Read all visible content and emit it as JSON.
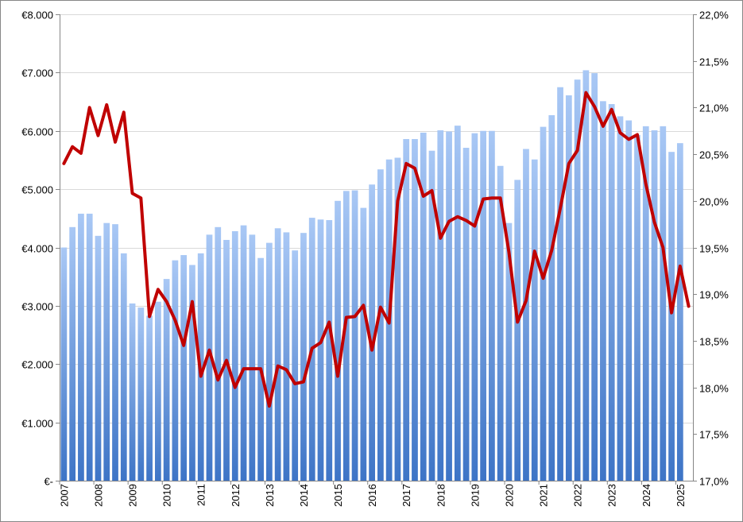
{
  "chart_data": {
    "type": "bar+line",
    "title": "",
    "xlabel": "",
    "ylabel": "",
    "ylabel_right": "",
    "y_left": {
      "range": [
        0,
        8000
      ],
      "ticks": [
        0,
        1000,
        2000,
        3000,
        4000,
        5000,
        6000,
        7000,
        8000
      ],
      "tick_labels": [
        "€-",
        "€1.000",
        "€2.000",
        "€3.000",
        "€4.000",
        "€5.000",
        "€6.000",
        "€7.000",
        "€8.000"
      ]
    },
    "y_right": {
      "range": [
        17.0,
        22.0
      ],
      "ticks": [
        17.0,
        17.5,
        18.0,
        18.5,
        19.0,
        19.5,
        20.0,
        20.5,
        21.0,
        21.5,
        22.0
      ],
      "tick_labels": [
        "17,0%",
        "17,5%",
        "18,0%",
        "18,5%",
        "19,0%",
        "19,5%",
        "20,0%",
        "20,5%",
        "21,0%",
        "21,5%",
        "22,0%"
      ]
    },
    "x_axis": {
      "year_labels": [
        "2007",
        "2008",
        "2009",
        "2010",
        "2011",
        "2012",
        "2013",
        "2014",
        "2015",
        "2016",
        "2017",
        "2018",
        "2019",
        "2020",
        "2021",
        "2022",
        "2023",
        "2024",
        "2025"
      ],
      "periods_per_label": 4
    },
    "grid": true,
    "legend": "none",
    "colors": {
      "bar_top": "#a9c8f5",
      "bar_bottom": "#3d74c6",
      "line": "#c00000",
      "grid": "#d9d9d9",
      "frame": "#868686"
    },
    "series": [
      {
        "type": "bar",
        "axis": "left",
        "values": [
          4000,
          4350,
          4580,
          4580,
          4200,
          4420,
          4400,
          3900,
          3040,
          2970,
          2830,
          3070,
          3460,
          3780,
          3870,
          3700,
          3900,
          4220,
          4350,
          4130,
          4280,
          4380,
          4220,
          3820,
          4080,
          4330,
          4260,
          3950,
          4250,
          4510,
          4480,
          4470,
          4800,
          4970,
          4980,
          4680,
          5080,
          5340,
          5510,
          5540,
          5860,
          5860,
          5970,
          5660,
          6010,
          5990,
          6090,
          5710,
          5960,
          6000,
          6000,
          5400,
          4420,
          5160,
          5690,
          5510,
          6070,
          6270,
          6750,
          6610,
          6880,
          7040,
          6990,
          6510,
          6460,
          6250,
          6180,
          5930,
          6080,
          6010,
          6080,
          5640,
          5790
        ]
      },
      {
        "type": "line",
        "axis": "right",
        "values": [
          20.4,
          20.58,
          20.51,
          21.0,
          20.7,
          21.03,
          20.63,
          20.95,
          20.08,
          20.03,
          18.76,
          19.05,
          18.92,
          18.72,
          18.45,
          18.92,
          18.12,
          18.4,
          18.08,
          18.29,
          18.0,
          18.2,
          18.2,
          18.2,
          17.8,
          18.23,
          18.19,
          18.04,
          18.06,
          18.42,
          18.48,
          18.7,
          18.12,
          18.75,
          18.76,
          18.88,
          18.4,
          18.86,
          18.69,
          20.0,
          20.4,
          20.35,
          20.05,
          20.11,
          19.6,
          19.78,
          19.83,
          19.79,
          19.73,
          20.02,
          20.03,
          20.03,
          19.45,
          18.7,
          18.93,
          19.46,
          19.17,
          19.47,
          19.92,
          20.4,
          20.54,
          21.16,
          21.01,
          20.8,
          20.98,
          20.73,
          20.66,
          20.71,
          20.18,
          19.77,
          19.5,
          18.8,
          19.3,
          18.87
        ]
      }
    ]
  }
}
